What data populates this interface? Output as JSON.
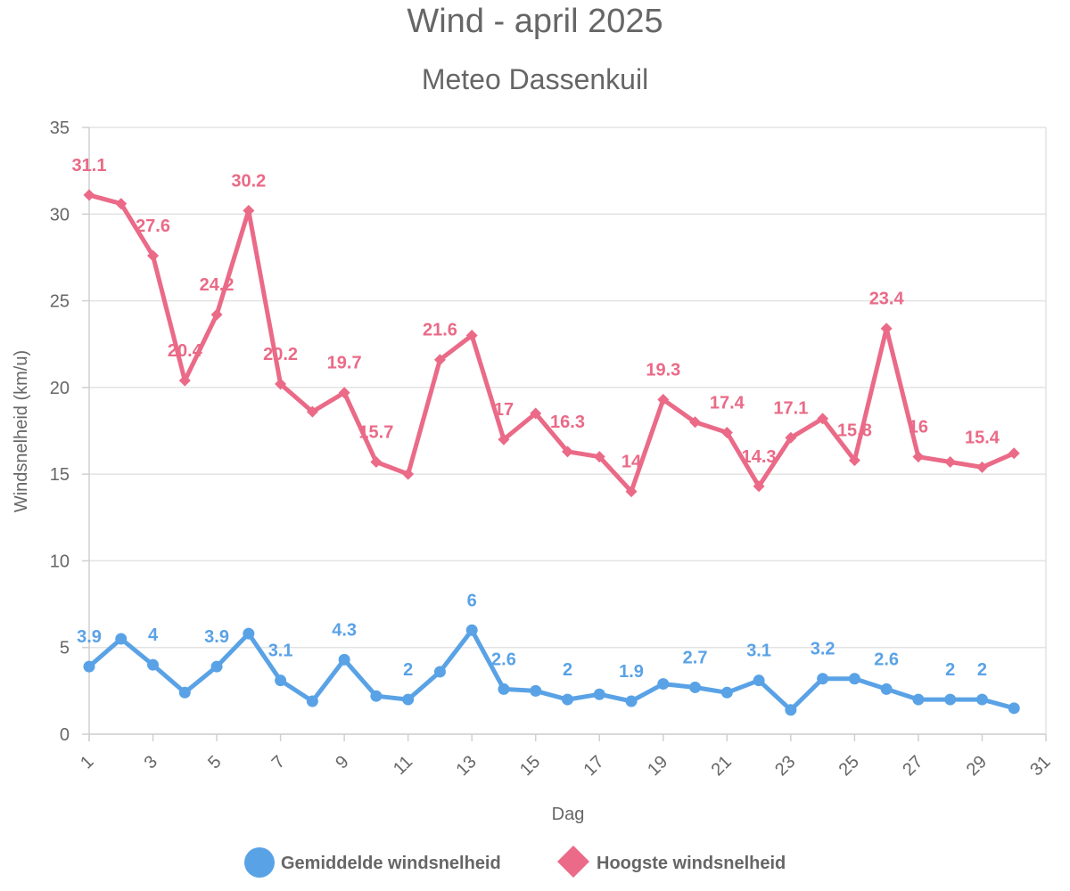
{
  "chart_data": {
    "type": "line",
    "title": "Wind - april 2025",
    "subtitle": "Meteo Dassenkuil",
    "xlabel": "Dag",
    "ylabel": "Windsnelheid (km/u)",
    "xlim": [
      1,
      31
    ],
    "ylim": [
      0,
      35
    ],
    "x_ticks": [
      1,
      3,
      5,
      7,
      9,
      11,
      13,
      15,
      17,
      19,
      21,
      23,
      25,
      27,
      29,
      31
    ],
    "y_ticks": [
      0,
      5,
      10,
      15,
      20,
      25,
      30,
      35
    ],
    "grid": true,
    "legend_position": "bottom",
    "x": [
      1,
      2,
      3,
      4,
      5,
      6,
      7,
      8,
      9,
      10,
      11,
      12,
      13,
      14,
      15,
      16,
      17,
      18,
      19,
      20,
      21,
      22,
      23,
      24,
      25,
      26,
      27,
      28,
      29,
      30
    ],
    "series": [
      {
        "name": "Gemiddelde windsnelheid",
        "color": "#5aa2e6",
        "marker": "circle",
        "values": [
          3.9,
          5.5,
          4,
          2.4,
          3.9,
          5.8,
          3.1,
          1.9,
          4.3,
          2.2,
          2,
          3.6,
          6,
          2.6,
          2.5,
          2,
          2.3,
          1.9,
          2.9,
          2.7,
          2.4,
          3.1,
          1.4,
          3.2,
          3.2,
          2.6,
          2,
          2,
          2,
          1.5
        ],
        "labeled_days": [
          1,
          3,
          5,
          7,
          9,
          11,
          13,
          14,
          16,
          18,
          20,
          22,
          24,
          26,
          28,
          29
        ]
      },
      {
        "name": "Hoogste windsnelheid",
        "color": "#ea6a87",
        "marker": "diamond",
        "values": [
          31.1,
          30.6,
          27.6,
          20.4,
          24.2,
          30.2,
          20.2,
          18.6,
          19.7,
          15.7,
          15,
          21.6,
          23,
          17,
          18.5,
          16.3,
          16,
          14,
          19.3,
          18,
          17.4,
          14.3,
          17.1,
          18.2,
          15.8,
          23.4,
          16,
          15.7,
          15.4,
          16.2
        ],
        "labeled_days": [
          1,
          3,
          4,
          5,
          6,
          7,
          9,
          10,
          12,
          14,
          16,
          18,
          19,
          21,
          22,
          23,
          25,
          26,
          27,
          29
        ]
      }
    ]
  }
}
